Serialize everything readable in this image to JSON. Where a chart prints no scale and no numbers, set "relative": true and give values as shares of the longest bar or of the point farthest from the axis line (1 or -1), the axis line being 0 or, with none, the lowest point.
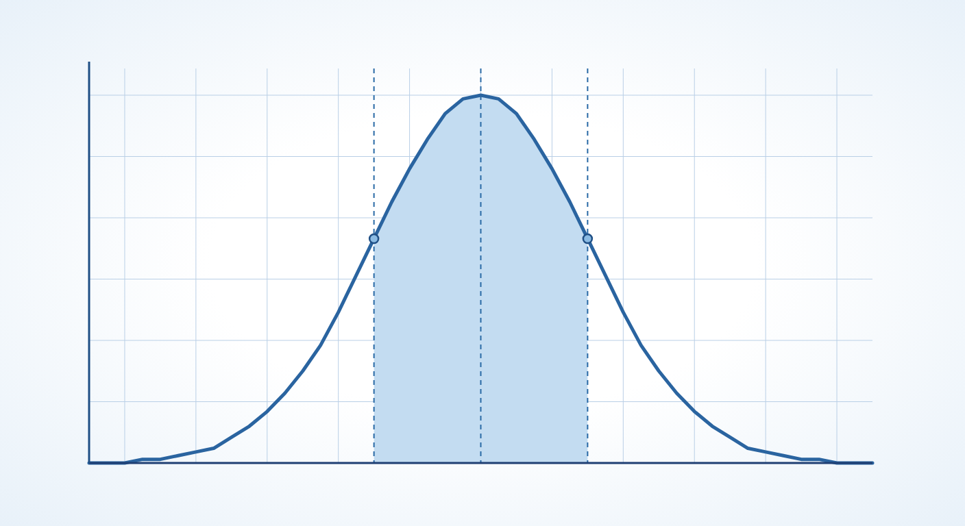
{
  "chart_data": {
    "type": "line",
    "relative": true,
    "grid": true,
    "categories": [
      null,
      null,
      null,
      null,
      null,
      null,
      null,
      null,
      null,
      null,
      null,
      null,
      null,
      null,
      null,
      null,
      null,
      null,
      null,
      null,
      null,
      null,
      null,
      null,
      null,
      null,
      null,
      null,
      null,
      null,
      null,
      null,
      null,
      null,
      null,
      null,
      null,
      null,
      null,
      null,
      null,
      null,
      null,
      null,
      null
    ],
    "series": [
      {
        "color": "#2a64a0",
        "values": [
          0,
          0,
          0,
          0.01,
          0.01,
          0.02,
          0.03,
          0.04,
          0.07,
          0.1,
          0.14,
          0.19,
          0.25,
          0.32,
          0.41,
          0.51,
          0.61,
          0.71,
          0.8,
          0.88,
          0.95,
          0.99,
          1,
          0.99,
          0.95,
          0.88,
          0.8,
          0.71,
          0.61,
          0.51,
          0.41,
          0.32,
          0.25,
          0.19,
          0.14,
          0.1,
          0.07,
          0.04,
          0.03,
          0.02,
          0.01,
          0.01,
          0,
          0,
          0
        ]
      }
    ]
  }
}
